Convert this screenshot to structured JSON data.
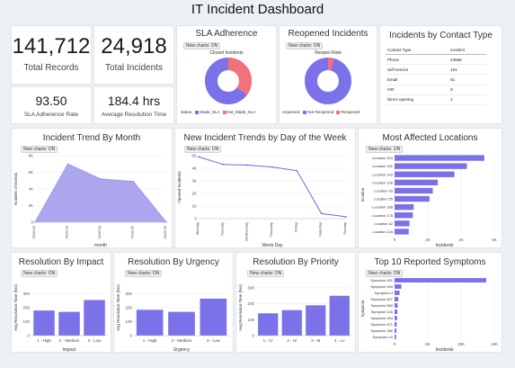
{
  "title": "IT Incident Dashboard",
  "filter_label": "New charts: ON",
  "kpis": {
    "records": {
      "value": "141,712",
      "label": "Total Records"
    },
    "incidents": {
      "value": "24,918",
      "label": "Total Incidents"
    },
    "sla_rate": {
      "value": "93.50",
      "label": "SLA Adherence Rate"
    },
    "resolution": {
      "value": "184.4 hrs",
      "label": "Average Resolution Time"
    }
  },
  "sla": {
    "title": "SLA Adherence",
    "subtitle": "Closed Incidents",
    "legend_title": "status:",
    "legend": [
      "Made_SLA",
      "Not_Made_SLA"
    ],
    "colors": [
      "#7b72e9",
      "#f0727a"
    ]
  },
  "reopened": {
    "title": "Reopened Incidents",
    "subtitle": "Reopen Rate",
    "legend_title": "reopened:",
    "legend": [
      "Not Reopened",
      "Reopened"
    ],
    "colors": [
      "#7b72e9",
      "#f0727a"
    ]
  },
  "contact": {
    "title": "Incidents by Contact Type",
    "headers": [
      "Contact Type",
      "Incident"
    ],
    "rows": [
      [
        "Phone",
        "24568"
      ],
      [
        "Self service",
        "161"
      ],
      [
        "Email",
        "61"
      ],
      [
        "IVR",
        "9"
      ],
      [
        "Direct opening",
        "4"
      ]
    ]
  },
  "trend": {
    "title": "Incident Trend By Month"
  },
  "dow": {
    "title": "New Incident Trends by Day of the Week"
  },
  "affected": {
    "title": "Most Affected Locations"
  },
  "impact": {
    "title": "Resolution By Impact"
  },
  "urgency": {
    "title": "Resolution By Urgency"
  },
  "priority": {
    "title": "Resolution By Priority"
  },
  "symptoms": {
    "title": "Top 10 Reported Symptoms"
  },
  "chart_data": [
    {
      "id": "trend",
      "type": "area",
      "title": "Incident Trend By Month",
      "x": [
        "2016.02",
        "2016.03",
        "2016.04",
        "2016.05",
        "2016.06"
      ],
      "values": [
        0,
        7000,
        5200,
        4900,
        0
      ],
      "xlabel": "month",
      "ylabel": "Number of Events",
      "yticks": [
        "0",
        "2K",
        "4K",
        "6K",
        "8K"
      ],
      "ylim": [
        0,
        8000
      ],
      "color": "#9d97ec"
    },
    {
      "id": "dow",
      "type": "line",
      "title": "New Incident Trends by Day of the Week",
      "x": [
        "Monday",
        "Tuesday",
        "Wednesday",
        "Thursday",
        "Friday",
        "Saturday",
        "Sunday"
      ],
      "values": [
        4900,
        4300,
        4250,
        4100,
        3800,
        400,
        150
      ],
      "xlabel": "Week Day",
      "ylabel": "Opened Incidents",
      "yticks": [
        "0",
        "1K",
        "2K",
        "3K",
        "4K",
        "5K"
      ],
      "ylim": [
        0,
        5000
      ],
      "color": "#6f66e6"
    },
    {
      "id": "affected",
      "type": "bar",
      "orientation": "horizontal",
      "title": "Most Affected Locations",
      "categories": [
        "Location 204",
        "Location 161",
        "Location 143",
        "Location 108",
        "Location 93",
        "Location 55",
        "Location 188",
        "Location 178",
        "Location 42",
        "Location 115"
      ],
      "values": [
        5400,
        4350,
        3600,
        2600,
        2300,
        2100,
        1150,
        1100,
        900,
        850
      ],
      "xlabel": "Incidents",
      "ylabel": "location",
      "xticks": [
        "0",
        "2K",
        "4K",
        "6K"
      ],
      "xlim": [
        0,
        6000
      ],
      "color": "#7b72e9"
    },
    {
      "id": "impact",
      "type": "bar",
      "title": "Resolution By Impact",
      "categories": [
        "1 - High",
        "2 - Medium",
        "3 - Low"
      ],
      "values": [
        180,
        170,
        255
      ],
      "xlabel": "Impact",
      "ylabel": "Avg Resolution Time (hrs)",
      "yticks": [
        "0",
        "100",
        "200",
        "300"
      ],
      "ylim": [
        0,
        400
      ],
      "color": "#7b72e9"
    },
    {
      "id": "urgency",
      "type": "bar",
      "title": "Resolution By Urgency",
      "categories": [
        "1 - High",
        "2 - Medium",
        "3 - Low"
      ],
      "values": [
        185,
        170,
        265
      ],
      "xlabel": "Urgency",
      "ylabel": "Avg Resolution Time (hrs)",
      "yticks": [
        "0",
        "100",
        "200",
        "300"
      ],
      "ylim": [
        0,
        400
      ],
      "color": "#7b72e9"
    },
    {
      "id": "priority",
      "type": "bar",
      "title": "Resolution By Priority",
      "categories": [
        "1 - Cr",
        "2 - Hi",
        "3 - M",
        "4 - Lo"
      ],
      "values": [
        140,
        160,
        190,
        250
      ],
      "xlabel": "",
      "ylabel": "Avg Resolution Time (hrs)",
      "yticks": [
        "0",
        "100",
        "200",
        "300"
      ],
      "ylim": [
        0,
        350
      ],
      "color": "#7b72e9"
    },
    {
      "id": "symptoms",
      "type": "bar",
      "orientation": "horizontal",
      "title": "Top 10 Reported Symptoms",
      "categories": [
        "Symptom 491",
        "Symptom 534",
        "Symptom 4",
        "Symptom 607",
        "Symptom 580",
        "Symptom 116",
        "Symptom 494",
        "Symptom 571",
        "Symptom 286",
        "Symptom 10"
      ],
      "values": [
        14700,
        1100,
        800,
        600,
        500,
        450,
        400,
        350,
        300,
        250
      ],
      "xlabel": "Incidents",
      "ylabel": "Symptom",
      "xticks": [
        "0",
        "5K",
        "10K",
        "15K"
      ],
      "xlim": [
        0,
        16000
      ],
      "color": "#7b72e9"
    }
  ]
}
